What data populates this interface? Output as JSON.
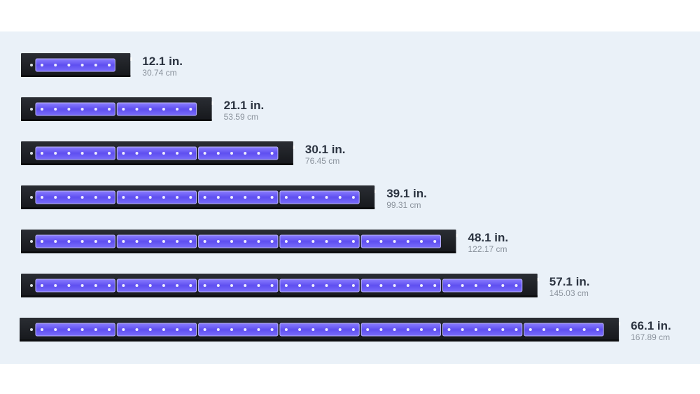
{
  "bars": [
    {
      "length": "12.1 in.",
      "metric": "30.74 cm"
    },
    {
      "length": "21.1 in.",
      "metric": "53.59 cm"
    },
    {
      "length": "30.1 in.",
      "metric": "76.45 cm"
    },
    {
      "length": "39.1 in.",
      "metric": "99.31 cm"
    },
    {
      "length": "48.1 in.",
      "metric": "122.17 cm"
    },
    {
      "length": "57.1 in.",
      "metric": "145.03 cm"
    },
    {
      "length": "66.1 in.",
      "metric": "167.89 cm"
    }
  ]
}
